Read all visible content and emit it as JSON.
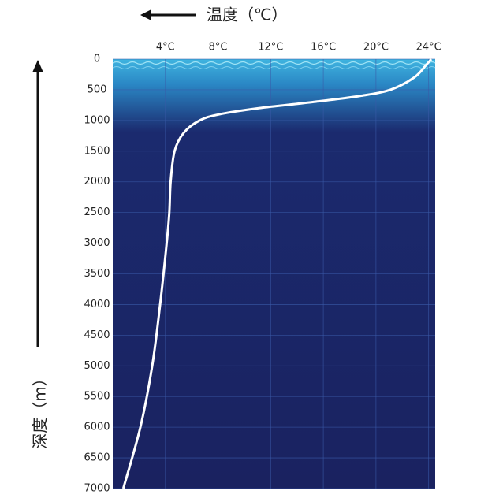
{
  "chart_data": {
    "type": "line",
    "title": "温度（℃）",
    "y_label": "深度（m）",
    "color": "#ffffff",
    "grid": true,
    "x": [
      0.8,
      2.1,
      3.0,
      3.6,
      4.1,
      4.3,
      4.4,
      4.7,
      5.4,
      6.6,
      8.1,
      11.1,
      15.2,
      18.8,
      21.1,
      22.9,
      23.8,
      24.2
    ],
    "values": [
      7000,
      6000,
      5000,
      4000,
      3000,
      2500,
      2000,
      1500,
      1200,
      1000,
      900,
      800,
      700,
      600,
      500,
      300,
      100,
      0
    ],
    "xlim": [
      0,
      24.5
    ],
    "xticks": [
      {
        "value": 4,
        "label": "4°C"
      },
      {
        "value": 8,
        "label": "8°C"
      },
      {
        "value": 12,
        "label": "12°C"
      },
      {
        "value": 16,
        "label": "16°C"
      },
      {
        "value": 20,
        "label": "20°C"
      },
      {
        "value": 24,
        "label": "24°C"
      }
    ],
    "ylim": [
      0,
      7000
    ],
    "yticks": [
      0,
      500,
      1000,
      1500,
      2000,
      2500,
      3000,
      3500,
      4000,
      4500,
      5000,
      5500,
      6000,
      6500,
      7000
    ],
    "y_inverted": true
  }
}
